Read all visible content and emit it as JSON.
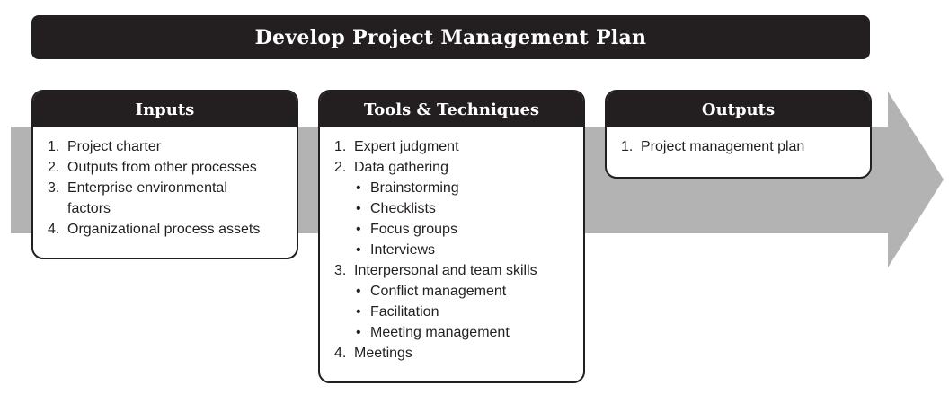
{
  "title": "Develop Project Management Plan",
  "colors": {
    "dark": "#231f20",
    "arrow": "#b3b3b3",
    "text": "#231f20"
  },
  "inputs": {
    "heading": "Inputs",
    "items": [
      {
        "num": "1.",
        "text": "Project charter"
      },
      {
        "num": "2.",
        "text": "Outputs from other processes"
      },
      {
        "num": "3.",
        "text": "Enterprise environmental",
        "cont": "factors"
      },
      {
        "num": "4.",
        "text": "Organizational process assets"
      }
    ]
  },
  "tools": {
    "heading": "Tools & Techniques",
    "items": [
      {
        "num": "1.",
        "text": "Expert judgment"
      },
      {
        "num": "2.",
        "text": "Data gathering"
      },
      {
        "bullet": "•",
        "text": "Brainstorming"
      },
      {
        "bullet": "•",
        "text": "Checklists"
      },
      {
        "bullet": "•",
        "text": "Focus groups"
      },
      {
        "bullet": "•",
        "text": "Interviews"
      },
      {
        "num": "3.",
        "text": "Interpersonal and team skills"
      },
      {
        "bullet": "•",
        "text": "Conflict management"
      },
      {
        "bullet": "•",
        "text": "Facilitation"
      },
      {
        "bullet": "•",
        "text": "Meeting management"
      },
      {
        "num": "4.",
        "text": "Meetings"
      }
    ]
  },
  "outputs": {
    "heading": "Outputs",
    "items": [
      {
        "num": "1.",
        "text": "Project management plan"
      }
    ]
  }
}
